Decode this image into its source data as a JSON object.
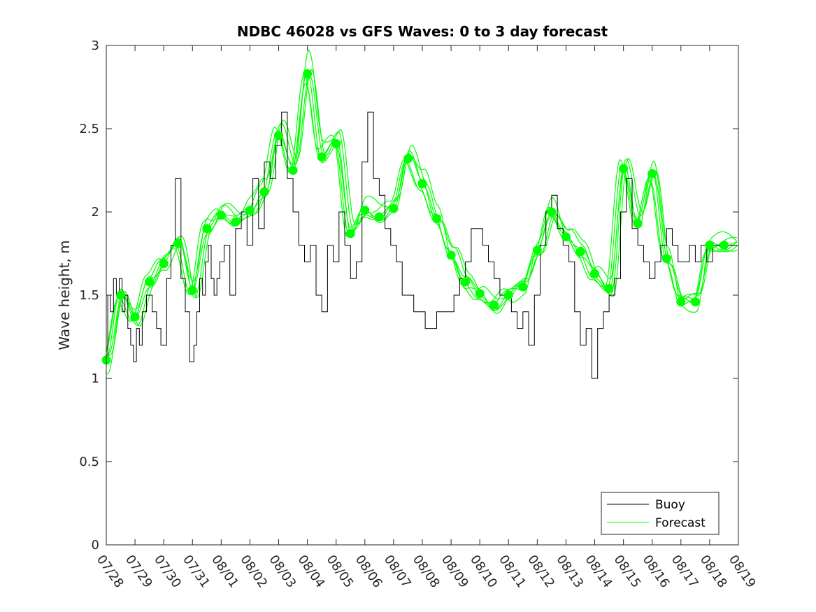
{
  "chart_data": {
    "type": "line",
    "title": "NDBC 46028 vs GFS Waves: 0 to 3 day forecast",
    "xlabel": "",
    "ylabel": "Wave height, m",
    "ylim": [
      0,
      3
    ],
    "xlim": [
      0,
      22
    ],
    "yticks": [
      0,
      0.5,
      1,
      1.5,
      2,
      2.5,
      3
    ],
    "ytick_labels": [
      "0",
      "0.5",
      "1",
      "1.5",
      "2",
      "2.5",
      "3"
    ],
    "xtick_labels": [
      "07/28",
      "07/29",
      "07/30",
      "07/31",
      "08/01",
      "08/02",
      "08/03",
      "08/04",
      "08/05",
      "08/06",
      "08/07",
      "08/08",
      "08/09",
      "08/10",
      "08/11",
      "08/12",
      "08/13",
      "08/14",
      "08/15",
      "08/16",
      "08/17",
      "08/18",
      "08/19"
    ],
    "grid": false,
    "legend": {
      "position": "bottom-right",
      "entries": [
        "Buoy",
        "Forecast"
      ]
    },
    "colors": {
      "buoy": "#000000",
      "forecast": "#00ff00",
      "axis": "#262626"
    },
    "buoy": {
      "name": "Buoy",
      "x": [
        0,
        0.1,
        0.2,
        0.3,
        0.4,
        0.5,
        0.6,
        0.7,
        0.8,
        0.9,
        1.0,
        1.1,
        1.2,
        1.3,
        1.5,
        1.7,
        1.8,
        2.0,
        2.2,
        2.3,
        2.5,
        2.7,
        2.8,
        3.0,
        3.1,
        3.2,
        3.3,
        3.4,
        3.5,
        3.6,
        3.7,
        3.8,
        3.9,
        4.0,
        4.2,
        4.4,
        4.6,
        4.8,
        5.0,
        5.2,
        5.4,
        5.6,
        5.8,
        6.0,
        6.2,
        6.4,
        6.6,
        6.8,
        7.0,
        7.2,
        7.4,
        7.6,
        7.8,
        8.0,
        8.2,
        8.4,
        8.6,
        8.8,
        9.0,
        9.2,
        9.4,
        9.6,
        9.8,
        10.0,
        10.2,
        10.4,
        10.6,
        10.8,
        11.0,
        11.2,
        11.4,
        11.6,
        11.8,
        12.0,
        12.2,
        12.4,
        12.6,
        12.8,
        13.0,
        13.2,
        13.4,
        13.6,
        13.8,
        14.0,
        14.2,
        14.4,
        14.6,
        14.8,
        15.0,
        15.2,
        15.4,
        15.6,
        15.8,
        16.0,
        16.2,
        16.4,
        16.6,
        16.8,
        17.0,
        17.2,
        17.4,
        17.6,
        17.8,
        18.0,
        18.2,
        18.4,
        18.6,
        18.8,
        19.0,
        19.2,
        19.4,
        19.6,
        19.8,
        20.0,
        20.2,
        20.4,
        20.6,
        20.8,
        21.0,
        21.2,
        21.4,
        21.6,
        21.8,
        22.0
      ],
      "values": [
        1.1,
        1.5,
        1.4,
        1.6,
        1.5,
        1.6,
        1.4,
        1.5,
        1.3,
        1.2,
        1.1,
        1.3,
        1.2,
        1.4,
        1.5,
        1.4,
        1.3,
        1.2,
        1.6,
        1.8,
        2.2,
        1.6,
        1.4,
        1.1,
        1.2,
        1.4,
        1.6,
        1.5,
        1.7,
        1.8,
        1.6,
        1.5,
        1.6,
        1.7,
        1.8,
        1.5,
        1.9,
        2.0,
        1.8,
        2.2,
        1.9,
        2.3,
        2.2,
        2.4,
        2.6,
        2.2,
        2.0,
        1.8,
        1.7,
        1.8,
        1.5,
        1.4,
        1.8,
        1.7,
        2.0,
        1.8,
        1.6,
        1.7,
        2.3,
        2.6,
        2.2,
        2.1,
        1.9,
        1.8,
        1.7,
        1.5,
        1.5,
        1.4,
        1.4,
        1.3,
        1.3,
        1.4,
        1.4,
        1.4,
        1.5,
        1.6,
        1.7,
        1.9,
        1.9,
        1.8,
        1.7,
        1.6,
        1.5,
        1.5,
        1.4,
        1.3,
        1.4,
        1.2,
        1.5,
        1.8,
        2.0,
        2.1,
        1.9,
        1.8,
        1.7,
        1.4,
        1.2,
        1.3,
        1.0,
        1.3,
        1.4,
        1.5,
        1.6,
        2.0,
        2.2,
        1.9,
        1.8,
        1.7,
        1.6,
        1.7,
        1.8,
        1.9,
        1.8,
        1.7,
        1.7,
        1.8,
        1.7,
        1.8,
        1.7,
        1.8,
        1.8,
        1.8,
        1.8,
        1.8
      ]
    },
    "forecast_points": {
      "name": "Forecast",
      "x": [
        0,
        0.5,
        1,
        1.5,
        2,
        2.5,
        3,
        3.5,
        4,
        4.5,
        5,
        5.5,
        6,
        6.5,
        7,
        7.5,
        8,
        8.5,
        9,
        9.5,
        10,
        10.5,
        11,
        11.5,
        12,
        12.5,
        13,
        13.5,
        14,
        14.5,
        15,
        15.5,
        16,
        16.5,
        17,
        17.5,
        18,
        18.5,
        19,
        19.5,
        20,
        20.5,
        21,
        21.5
      ],
      "values": [
        1.11,
        1.5,
        1.37,
        1.58,
        1.69,
        1.81,
        1.53,
        1.9,
        1.98,
        1.94,
        2.01,
        2.12,
        2.46,
        2.25,
        2.83,
        2.33,
        2.41,
        1.87,
        2.01,
        1.97,
        2.02,
        2.32,
        2.17,
        1.96,
        1.74,
        1.58,
        1.51,
        1.44,
        1.5,
        1.55,
        1.77,
        2.0,
        1.85,
        1.76,
        1.63,
        1.54,
        2.26,
        1.93,
        2.23,
        1.72,
        1.46,
        1.46,
        1.8,
        1.8
      ]
    }
  }
}
